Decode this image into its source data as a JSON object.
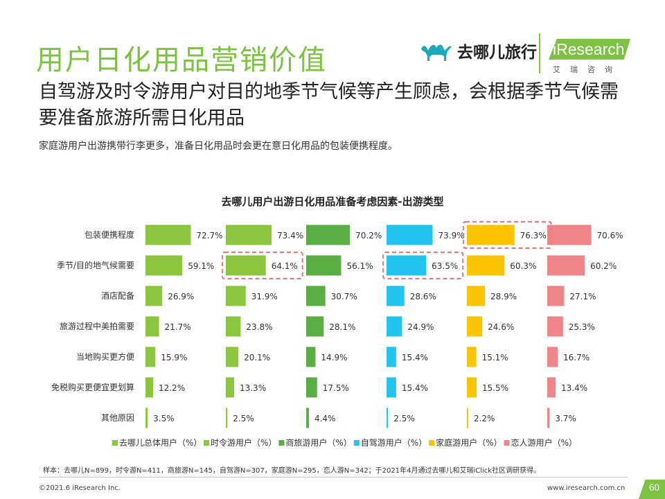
{
  "header": {
    "title": "用户日化用品营销价值",
    "subtitle": "自驾游及时令游用户对目的地季节气候等产生顾虑，会根据季节气候需要准备旅游所需日化用品",
    "description": "家庭游用户出游携带行李更多，准备日化用品时会更在意日化用品的包装便携程度。"
  },
  "logos": {
    "qunar_text": "去哪儿旅行",
    "ir_text": "iResearch",
    "ir_cn": "艾瑞咨询"
  },
  "chart_data": {
    "type": "bar",
    "title": "去哪儿用户出游日化用品准备考虑因素-出游类型",
    "categories": [
      "包装便携程度",
      "季节/目的地气候需要",
      "酒店配备",
      "旅游过程中美拍需要",
      "当地购买更方便",
      "免税购买更便宜更划算",
      "其他原因"
    ],
    "series": [
      {
        "name": "去哪儿总体用户（%）",
        "color": "#8cc63f",
        "values": [
          72.7,
          59.1,
          26.9,
          21.7,
          15.9,
          12.2,
          3.5
        ]
      },
      {
        "name": "时令游用户（%）",
        "color": "#8cc63f",
        "values": [
          73.4,
          64.1,
          31.9,
          23.8,
          20.1,
          13.3,
          2.5
        ]
      },
      {
        "name": "商旅游用户（%）",
        "color": "#5aae44",
        "values": [
          70.2,
          56.1,
          30.7,
          28.1,
          14.9,
          17.5,
          4.4
        ]
      },
      {
        "name": "自驾游用户（%）",
        "color": "#22c3ec",
        "values": [
          73.9,
          63.5,
          28.6,
          24.9,
          15.4,
          15.4,
          2.5
        ]
      },
      {
        "name": "家庭游用户（%）",
        "color": "#fcc400",
        "values": [
          76.3,
          60.3,
          28.9,
          24.6,
          15.1,
          15.5,
          2.2
        ]
      },
      {
        "name": "恋人游用户（%）",
        "color": "#f08589",
        "values": [
          70.6,
          60.2,
          27.1,
          25.3,
          16.7,
          13.4,
          3.7
        ]
      }
    ],
    "value_suffix": "%",
    "highlights": [
      {
        "series": 1,
        "category": 1
      },
      {
        "series": 3,
        "category": 1
      },
      {
        "series": 4,
        "category": 0
      }
    ],
    "highlight_color": "#e07f84"
  },
  "footer": {
    "note": "样本：去哪儿N=899，时令游N=411，商旅游N=145，自驾游N=307，家庭游N=295，恋人游N=342；于2021年4月通过去哪儿和艾瑞iClick社区调研获得。",
    "copyright": "©2021.6 iResearch Inc.",
    "website": "www.iresearch.com.cn",
    "page_number": "60"
  }
}
